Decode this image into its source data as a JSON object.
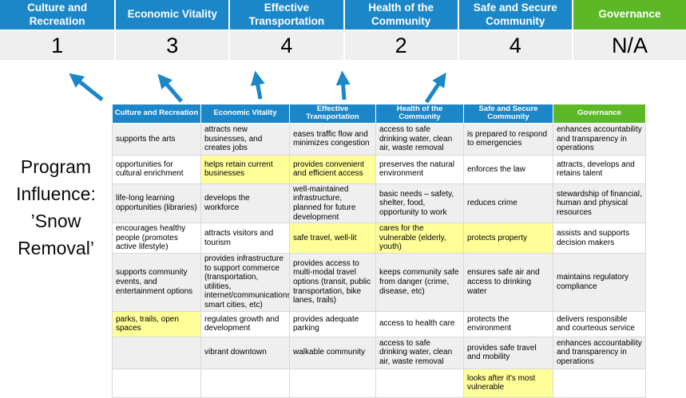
{
  "colors": {
    "blue": "#1b86c8",
    "green": "#5cb827",
    "highlight": "#ffff99",
    "band": "#efefef"
  },
  "summary": {
    "columns": [
      {
        "label": "Culture and Recreation",
        "score": "1",
        "green": false
      },
      {
        "label": "Economic Vitality",
        "score": "3",
        "green": false
      },
      {
        "label": "Effective Transportation",
        "score": "4",
        "green": false
      },
      {
        "label": "Health of the Community",
        "score": "2",
        "green": false
      },
      {
        "label": "Safe and Secure Community",
        "score": "4",
        "green": false
      },
      {
        "label": "Governance",
        "score": "N/A",
        "green": true
      }
    ]
  },
  "program_influence": {
    "lines": [
      "Program",
      "Influence:",
      "’Snow",
      "Removal’"
    ]
  },
  "matrix": {
    "headers": [
      {
        "label": "Culture and Recreation",
        "green": false
      },
      {
        "label": "Economic Vitality",
        "green": false
      },
      {
        "label": "Effective Transportation",
        "green": false
      },
      {
        "label": "Health of the Community",
        "green": false
      },
      {
        "label": "Safe and Secure Community",
        "green": false
      },
      {
        "label": "Governance",
        "green": true
      }
    ],
    "rows": [
      [
        {
          "text": "supports the arts",
          "highlight": false
        },
        {
          "text": "attracts new businesses, and creates jobs",
          "highlight": false
        },
        {
          "text": "eases traffic flow and minimizes congestion",
          "highlight": true
        },
        {
          "text": "access to safe drinking water, clean air, waste removal",
          "highlight": false
        },
        {
          "text": "is prepared to respond to emergencies",
          "highlight": true
        },
        {
          "text": "enhances accountability and transparency in operations",
          "highlight": false
        }
      ],
      [
        {
          "text": "opportunities for cultural enrichment",
          "highlight": false
        },
        {
          "text": "helps retain current businesses",
          "highlight": true
        },
        {
          "text": "provides convenient and efficient access",
          "highlight": true
        },
        {
          "text": "preserves the natural environment",
          "highlight": false
        },
        {
          "text": "enforces the law",
          "highlight": false
        },
        {
          "text": "attracts, develops and retains talent",
          "highlight": false
        }
      ],
      [
        {
          "text": "life-long learning opportunities (libraries)",
          "highlight": false
        },
        {
          "text": "develops the workforce",
          "highlight": false
        },
        {
          "text": "well-maintained infrastructure, planned for future development",
          "highlight": false
        },
        {
          "text": "basic needs – safety, shelter, food, opportunity to work",
          "highlight": true
        },
        {
          "text": "reduces crime",
          "highlight": false
        },
        {
          "text": "stewardship of financial, human and physical resources",
          "highlight": false
        }
      ],
      [
        {
          "text": "encourages healthy people (promotes active lifestyle)",
          "highlight": false
        },
        {
          "text": "attracts visitors and tourism",
          "highlight": false
        },
        {
          "text": "safe travel, well-lit",
          "highlight": true
        },
        {
          "text": "cares for the vulnerable (elderly, youth)",
          "highlight": true
        },
        {
          "text": "protects property",
          "highlight": true
        },
        {
          "text": "assists and supports decision makers",
          "highlight": false
        }
      ],
      [
        {
          "text": "supports community events, and entertainment options",
          "highlight": false
        },
        {
          "text": "provides infrastructure to support commerce (transportation, utilities, internet/communications, smart cities, etc)",
          "highlight": true
        },
        {
          "text": "provides access to multi-modal travel options (transit, public transportation, bike lanes, trails)",
          "highlight": true
        },
        {
          "text": "keeps community safe from danger (crime, disease, etc)",
          "highlight": true
        },
        {
          "text": "ensures safe air and access to drinking water",
          "highlight": false
        },
        {
          "text": "maintains regulatory compliance",
          "highlight": false
        }
      ],
      [
        {
          "text": "parks, trails, open spaces",
          "highlight": true
        },
        {
          "text": "regulates growth and development",
          "highlight": false
        },
        {
          "text": "provides adequate parking",
          "highlight": false
        },
        {
          "text": "access to health care",
          "highlight": false
        },
        {
          "text": "protects the environment",
          "highlight": false
        },
        {
          "text": "delivers responsible and courteous service",
          "highlight": false
        }
      ],
      [
        {
          "text": "",
          "highlight": false
        },
        {
          "text": "vibrant downtown",
          "highlight": false
        },
        {
          "text": "walkable community",
          "highlight": false
        },
        {
          "text": "access to safe drinking water, clean air, waste removal",
          "highlight": false
        },
        {
          "text": "provides safe travel and mobility",
          "highlight": true
        },
        {
          "text": "enhances accountability and transparency in operations",
          "highlight": false
        }
      ],
      [
        {
          "text": "",
          "highlight": false
        },
        {
          "text": "",
          "highlight": false
        },
        {
          "text": "",
          "highlight": false
        },
        {
          "text": "",
          "highlight": false
        },
        {
          "text": "looks after it's most vulnerable",
          "highlight": true
        },
        {
          "text": "",
          "highlight": false
        }
      ]
    ]
  }
}
